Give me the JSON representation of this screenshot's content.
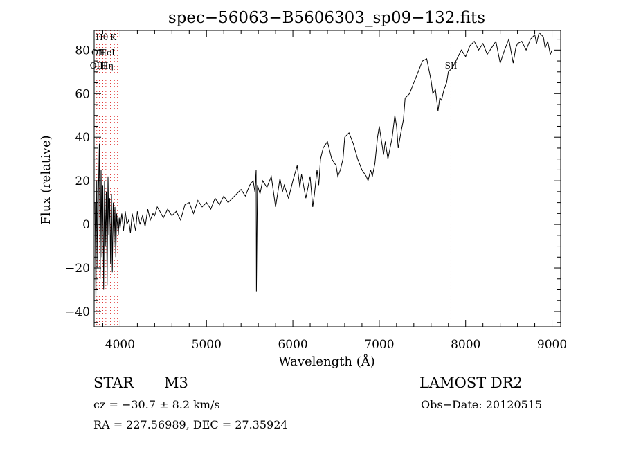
{
  "chart_data": {
    "type": "line",
    "title": "spec−56063−B5606303_sp09−132.fits",
    "xlabel": "Wavelength (Å)",
    "ylabel": "Flux (relative)",
    "xlim": [
      3700,
      9100
    ],
    "ylim": [
      -47,
      89
    ],
    "x_ticks": [
      4000,
      5000,
      6000,
      7000,
      8000,
      9000
    ],
    "y_ticks": [
      -40,
      -20,
      0,
      20,
      40,
      60,
      80
    ],
    "y_tick_labels": [
      "−40",
      "−20",
      "0",
      "20",
      "40",
      "60",
      "80"
    ],
    "line_color": "#000000",
    "marker_color": "#e03030",
    "series": [
      {
        "x": [
          3710,
          3720,
          3730,
          3740,
          3750,
          3760,
          3770,
          3780,
          3790,
          3800,
          3810,
          3820,
          3830,
          3840,
          3850,
          3860,
          3870,
          3880,
          3890,
          3900,
          3910,
          3920,
          3930,
          3940,
          3950,
          3960,
          3970,
          3980,
          3990,
          4000,
          4020,
          4040,
          4060,
          4080,
          4100,
          4120,
          4140,
          4160,
          4180,
          4200,
          4230,
          4260,
          4290,
          4320,
          4350,
          4380,
          4400,
          4430,
          4460,
          4500,
          4550,
          4600,
          4650,
          4700,
          4750,
          4800,
          4850,
          4900,
          4950,
          5000,
          5050,
          5100,
          5150,
          5200,
          5250,
          5300,
          5350,
          5400,
          5450,
          5500,
          5540,
          5560,
          5575,
          5578,
          5590,
          5620,
          5650,
          5700,
          5750,
          5800,
          5850,
          5880,
          5900,
          5950,
          6000,
          6050,
          6080,
          6100,
          6150,
          6200,
          6230,
          6250,
          6280,
          6300,
          6320,
          6350,
          6400,
          6450,
          6500,
          6520,
          6550,
          6580,
          6600,
          6650,
          6700,
          6750,
          6800,
          6850,
          6870,
          6900,
          6920,
          6950,
          6980,
          7000,
          7050,
          7070,
          7100,
          7150,
          7180,
          7200,
          7220,
          7250,
          7280,
          7300,
          7350,
          7400,
          7450,
          7500,
          7550,
          7580,
          7600,
          7620,
          7650,
          7680,
          7700,
          7720,
          7750,
          7780,
          7800,
          7850,
          7900,
          7950,
          8000,
          8050,
          8100,
          8150,
          8200,
          8250,
          8300,
          8350,
          8400,
          8450,
          8500,
          8550,
          8580,
          8600,
          8650,
          8700,
          8750,
          8800,
          8820,
          8850,
          8900,
          8920,
          8950,
          8980,
          9000
        ],
        "y": [
          10,
          -35,
          20,
          -20,
          15,
          37,
          -25,
          25,
          -15,
          18,
          -30,
          20,
          -10,
          15,
          -28,
          22,
          -5,
          12,
          -18,
          14,
          -22,
          10,
          -10,
          8,
          -15,
          5,
          0,
          -5,
          3,
          -2,
          5,
          -3,
          6,
          0,
          2,
          -4,
          5,
          1,
          -3,
          6,
          0,
          4,
          -1,
          7,
          2,
          5,
          4,
          8,
          6,
          3,
          7,
          4,
          6,
          2,
          9,
          10,
          5,
          11,
          8,
          10,
          7,
          12,
          9,
          13,
          10,
          12,
          14,
          16,
          13,
          18,
          20,
          15,
          25,
          -31,
          18,
          14,
          20,
          17,
          22,
          8,
          21,
          15,
          18,
          12,
          20,
          27,
          17,
          23,
          12,
          22,
          8,
          14,
          25,
          18,
          30,
          35,
          38,
          30,
          27,
          22,
          25,
          30,
          40,
          42,
          37,
          30,
          25,
          22,
          20,
          25,
          22,
          28,
          40,
          45,
          32,
          38,
          30,
          40,
          50,
          45,
          35,
          42,
          48,
          58,
          60,
          65,
          70,
          75,
          76,
          70,
          66,
          60,
          62,
          52,
          58,
          57,
          62,
          65,
          70,
          72,
          76,
          80,
          77,
          82,
          84,
          80,
          83,
          78,
          81,
          84,
          74,
          80,
          85,
          74,
          81,
          83,
          84,
          80,
          85,
          87,
          83,
          88,
          86,
          81,
          84,
          78,
          80
        ]
      }
    ],
    "marker_lines": [
      {
        "x": 3730
      },
      {
        "x": 3760
      },
      {
        "x": 3800
      },
      {
        "x": 3835
      },
      {
        "x": 3889
      },
      {
        "x": 3934
      },
      {
        "x": 3970
      },
      {
        "x": 7830
      }
    ],
    "line_labels": [
      {
        "text": "Hθ",
        "x": 3790,
        "y": 84.5
      },
      {
        "text": "K",
        "x": 3920,
        "y": 84.5
      },
      {
        "text": "OII",
        "x": 3745,
        "y": 77.5
      },
      {
        "text": "HeI",
        "x": 3850,
        "y": 77.5
      },
      {
        "text": "OIII",
        "x": 3745,
        "y": 71.5
      },
      {
        "text": "Hη",
        "x": 3850,
        "y": 71.5
      },
      {
        "text": "SII",
        "x": 7830,
        "y": 71.5
      }
    ]
  },
  "info": {
    "type_label": "STAR",
    "subclass": "M3",
    "cz": "cz = −30.7 ± 8.2 km/s",
    "radec": "RA = 227.56989, DEC =  27.35924",
    "survey": "LAMOST DR2",
    "obs_date": "Obs−Date: 20120515"
  }
}
